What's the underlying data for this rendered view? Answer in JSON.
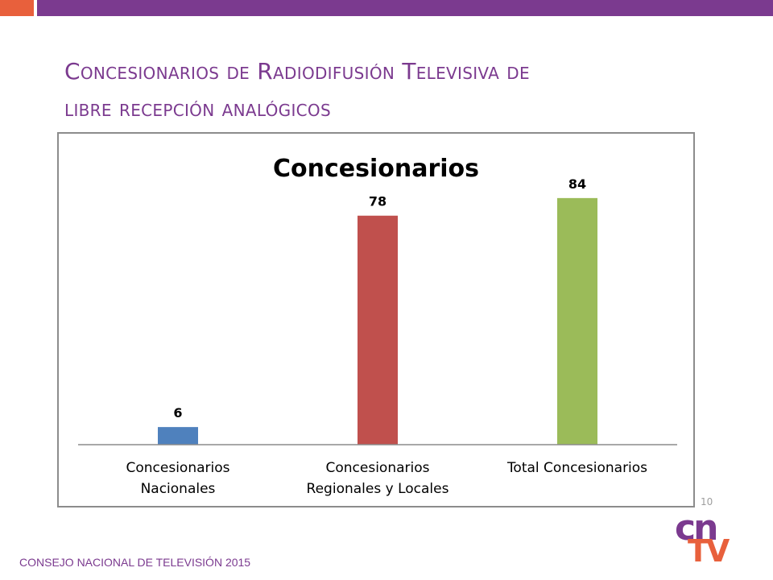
{
  "slide": {
    "title_line1": "Concesionarios de Radiodifusión Televisiva de",
    "title_line2": "libre recepción analógicos",
    "page_number": "10",
    "footer": "CONSEJO NACIONAL DE TELEVISIÓN 2015",
    "logo": {
      "top": "cn",
      "bottom": "TV"
    }
  },
  "colors": {
    "purple": "#7b3a8f",
    "orange": "#e8603c",
    "bar_blue": "#4f81bd",
    "bar_red": "#c0504d",
    "bar_green": "#9bbb59"
  },
  "chart_data": {
    "type": "bar",
    "title": "Concesionarios",
    "categories": [
      [
        "Concesionarios",
        "Nacionales"
      ],
      [
        "Concesionarios",
        "Regionales y Locales"
      ],
      [
        "Total Concesionarios"
      ]
    ],
    "values": [
      6,
      78,
      84
    ],
    "data_labels": [
      "6",
      "78",
      "84"
    ],
    "bar_colors": [
      "#4f81bd",
      "#c0504d",
      "#9bbb59"
    ],
    "xlabel": "",
    "ylabel": "",
    "ylim": [
      0,
      90
    ],
    "grid": false,
    "legend": "none"
  }
}
